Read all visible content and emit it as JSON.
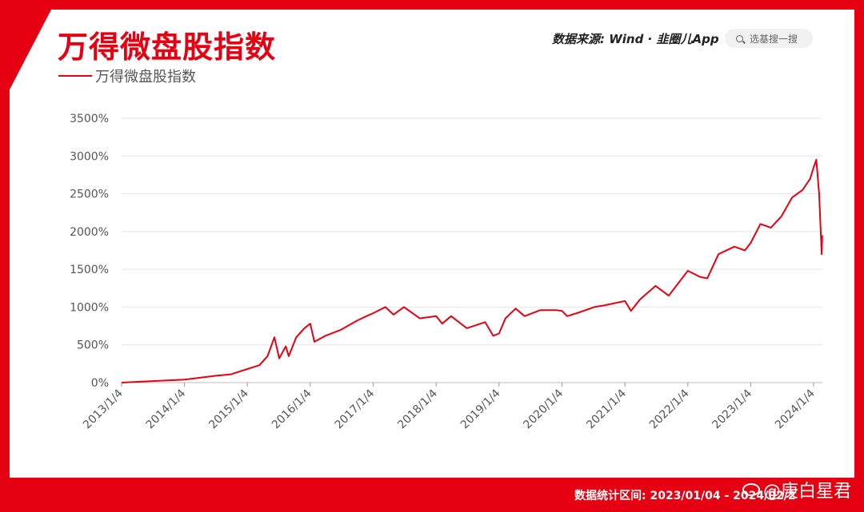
{
  "header": {
    "title": "万得微盘股指数",
    "source": "数据来源: Wind · 韭圈儿App",
    "search_placeholder": "选基搜一搜"
  },
  "footer": {
    "range": "数据统计区间: 2023/01/04 - 2024/02/2",
    "watermark_user": "@庚白星君"
  },
  "colors": {
    "brand": "#e50012",
    "line": "#e50012",
    "grid": "#e6e6e6"
  },
  "chart_data": {
    "type": "line",
    "title": "万得微盘股指数",
    "legend_position": "top-left",
    "grid": true,
    "y_unit": "%",
    "ylim": [
      0,
      3500
    ],
    "yticks": [
      0,
      500,
      1000,
      1500,
      2000,
      2500,
      3000,
      3500
    ],
    "ytick_labels": [
      "0%",
      "500%",
      "1000%",
      "1500%",
      "2000%",
      "2500%",
      "3000%",
      "3500%"
    ],
    "xtick_labels": [
      "2013/1/4",
      "2014/1/4",
      "2015/1/4",
      "2016/1/4",
      "2017/1/4",
      "2018/1/4",
      "2019/1/4",
      "2020/1/4",
      "2021/1/4",
      "2022/1/4",
      "2023/1/4",
      "2024/1/4"
    ],
    "series": [
      {
        "name": "万得微盘股指数",
        "x": [
          "2013/1/4",
          "2013/7/1",
          "2014/1/4",
          "2014/7/1",
          "2014/10/1",
          "2015/1/4",
          "2015/3/15",
          "2015/5/1",
          "2015/6/10",
          "2015/7/8",
          "2015/8/15",
          "2015/9/1",
          "2015/10/15",
          "2015/12/1",
          "2016/1/4",
          "2016/1/28",
          "2016/4/1",
          "2016/7/1",
          "2016/10/1",
          "2016/11/25",
          "2017/1/4",
          "2017/3/15",
          "2017/5/1",
          "2017/7/1",
          "2017/10/1",
          "2018/1/4",
          "2018/2/8",
          "2018/4/1",
          "2018/7/1",
          "2018/10/15",
          "2018/12/1",
          "2019/1/4",
          "2019/2/10",
          "2019/4/10",
          "2019/6/1",
          "2019/9/1",
          "2019/12/1",
          "2020/1/4",
          "2020/2/3",
          "2020/4/1",
          "2020/7/10",
          "2020/9/1",
          "2021/1/4",
          "2021/2/8",
          "2021/4/1",
          "2021/7/1",
          "2021/9/15",
          "2021/12/1",
          "2022/1/4",
          "2022/3/15",
          "2022/4/27",
          "2022/7/1",
          "2022/10/1",
          "2022/12/1",
          "2023/1/4",
          "2023/3/1",
          "2023/5/1",
          "2023/7/1",
          "2023/9/1",
          "2023/11/1",
          "2023/12/15",
          "2024/1/4",
          "2024/1/20",
          "2024/2/5",
          "2024/2/20",
          "2024/2/23"
        ],
        "y": [
          0,
          20,
          40,
          90,
          110,
          180,
          230,
          350,
          600,
          320,
          480,
          350,
          600,
          720,
          780,
          540,
          620,
          700,
          820,
          880,
          920,
          1000,
          900,
          1000,
          850,
          880,
          780,
          880,
          720,
          800,
          620,
          650,
          850,
          980,
          880,
          960,
          960,
          950,
          880,
          920,
          1000,
          1020,
          1080,
          950,
          1100,
          1280,
          1150,
          1380,
          1480,
          1400,
          1380,
          1700,
          1800,
          1750,
          1850,
          2100,
          2050,
          2200,
          2450,
          2550,
          2700,
          2850,
          2950,
          2500,
          1700,
          1950
        ]
      }
    ]
  }
}
